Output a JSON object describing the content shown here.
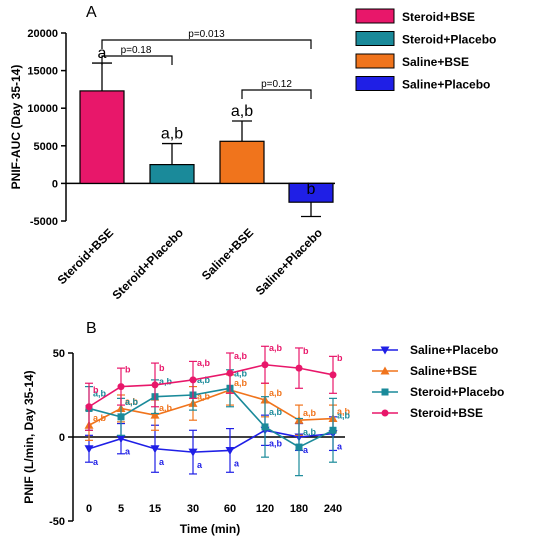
{
  "chart_data": [
    {
      "type": "bar",
      "panel_label": "A",
      "categories": [
        "Steroid+BSE",
        "Steroid+Placebo",
        "Saline+BSE",
        "Saline+Placebo"
      ],
      "values": [
        12300,
        2500,
        5600,
        -2500
      ],
      "errors": [
        3700,
        2800,
        2700,
        1900
      ],
      "bar_letters": [
        "a",
        "a,b",
        "a,b",
        "b"
      ],
      "colors": [
        "#e8176a",
        "#1a8a9a",
        "#f0741c",
        "#1f1fe6"
      ],
      "ylabel": "PNIF-AUC (Day 35-14)",
      "ylim": [
        -5000,
        20000
      ],
      "yticks": [
        "-5000",
        "0",
        "5000",
        "10000",
        "15000",
        "20000"
      ],
      "brackets": [
        {
          "from": 0,
          "to": 1,
          "label": "p=0.18"
        },
        {
          "from": 0,
          "to": 3,
          "label": "p=0.013"
        },
        {
          "from": 2,
          "to": 3,
          "label": "p=0.12"
        }
      ],
      "legend": [
        "Steroid+BSE",
        "Steroid+Placebo",
        "Saline+BSE",
        "Saline+Placebo"
      ]
    },
    {
      "type": "line",
      "panel_label": "B",
      "x": [
        "0",
        "5",
        "15",
        "30",
        "60",
        "120",
        "180",
        "240"
      ],
      "xlabel": "Time (min)",
      "ylabel": "PNIF (L/min, Day 35-14)",
      "ylim": [
        -50,
        50
      ],
      "yticks": [
        "-50",
        "0",
        "50"
      ],
      "series": [
        {
          "name": "Saline+Placebo",
          "color": "#1f1fe6",
          "marker": "triangle-down",
          "values": [
            -7,
            -1,
            -7,
            -9,
            -8,
            4,
            0,
            2
          ],
          "errors": [
            8,
            9,
            14,
            13,
            13,
            9,
            8,
            10
          ],
          "labels": [
            "a",
            "a",
            "a",
            "a",
            "a",
            "a,b",
            "a",
            "a"
          ]
        },
        {
          "name": "Saline+BSE",
          "color": "#f0741c",
          "marker": "triangle-up",
          "values": [
            7,
            17,
            13,
            20,
            28,
            22,
            10,
            11
          ],
          "errors": [
            9,
            8,
            9,
            10,
            9,
            10,
            9,
            8
          ],
          "labels": [
            "a,b",
            "a,b",
            "a,b",
            "a,b",
            "a,b",
            "a,b",
            "a,b",
            "a,b"
          ]
        },
        {
          "name": "Steroid+Placebo",
          "color": "#1a8a9a",
          "marker": "square",
          "values": [
            17,
            12,
            24,
            25,
            29,
            6,
            -6,
            4
          ],
          "errors": [
            13,
            11,
            10,
            9,
            11,
            18,
            17,
            19
          ],
          "labels": [
            "a,b",
            "a,b",
            "a,b",
            "a,b",
            "a,b",
            "a,b",
            "a,b",
            "a,b"
          ]
        },
        {
          "name": "Steroid+BSE",
          "color": "#e8176a",
          "marker": "circle",
          "values": [
            18,
            30,
            31,
            34,
            38,
            43,
            41,
            37
          ],
          "errors": [
            14,
            11,
            13,
            11,
            12,
            11,
            12,
            11
          ],
          "labels": [
            "b",
            "b",
            "b",
            "a,b",
            "a,b",
            "a,b",
            "b",
            "b"
          ]
        }
      ],
      "legend": [
        "Saline+Placebo",
        "Saline+BSE",
        "Steroid+Placebo",
        "Steroid+BSE"
      ]
    }
  ]
}
